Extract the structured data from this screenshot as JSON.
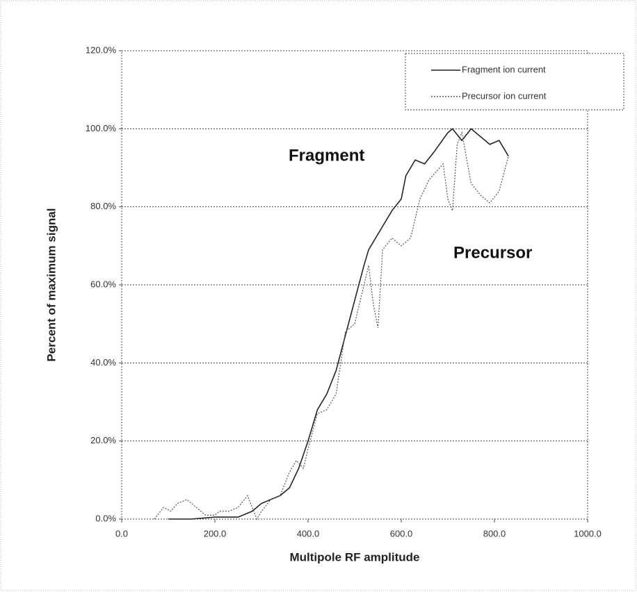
{
  "chart_data": {
    "type": "line",
    "x_label": "Multipole RF amplitude",
    "y_label": "Percent of maximum signal",
    "annotations": [
      "Fragment",
      "Precursor"
    ],
    "xlim": [
      0,
      1000
    ],
    "ylim": [
      0,
      120
    ],
    "xticks": [
      {
        "value": 0,
        "label": "0.0"
      },
      {
        "value": 200,
        "label": "200.0"
      },
      {
        "value": 400,
        "label": "400.0"
      },
      {
        "value": 600,
        "label": "600.0"
      },
      {
        "value": 800,
        "label": "800.0"
      },
      {
        "value": 1000,
        "label": "1000.0"
      }
    ],
    "yticks": [
      {
        "value": 0,
        "label": "0.0%"
      },
      {
        "value": 20,
        "label": "20.0%"
      },
      {
        "value": 40,
        "label": "40.0%"
      },
      {
        "value": 60,
        "label": "60.0%"
      },
      {
        "value": 80,
        "label": "80.0%"
      },
      {
        "value": 100,
        "label": "100.0%"
      },
      {
        "value": 120,
        "label": "120.0%"
      }
    ],
    "grid": true,
    "legend": "top-right",
    "series": [
      {
        "name": "Fragment ion current",
        "color": "#222222",
        "line_style": "solid",
        "x": [
          100,
          150,
          200,
          250,
          280,
          300,
          320,
          340,
          360,
          380,
          400,
          420,
          440,
          460,
          480,
          500,
          520,
          530,
          560,
          580,
          600,
          610,
          630,
          650,
          670,
          700,
          710,
          730,
          750,
          770,
          790,
          810,
          830
        ],
        "values": [
          0,
          0,
          0.5,
          0.5,
          2,
          4,
          5,
          6,
          8,
          13,
          20,
          28,
          32,
          38,
          47,
          56,
          65,
          69,
          75,
          79,
          82,
          88,
          92,
          91,
          94,
          99,
          100,
          97,
          100,
          98,
          96,
          97,
          93
        ]
      },
      {
        "name": "Precursor ion current",
        "color": "#555555",
        "line_style": "dotted",
        "x": [
          70,
          90,
          105,
          120,
          140,
          160,
          180,
          200,
          210,
          230,
          250,
          270,
          280,
          290,
          300,
          320,
          340,
          360,
          375,
          390,
          400,
          420,
          440,
          460,
          480,
          500,
          520,
          530,
          540,
          550,
          560,
          580,
          600,
          620,
          640,
          660,
          690,
          700,
          710,
          720,
          730,
          750,
          770,
          790,
          810,
          830
        ],
        "values": [
          0,
          3,
          2,
          4,
          5,
          3,
          1,
          1,
          2,
          2,
          3,
          6,
          3,
          0,
          2,
          5,
          6,
          12,
          15,
          13,
          18,
          27,
          28,
          32,
          48,
          50,
          60,
          65,
          55,
          49,
          69,
          72,
          70,
          72,
          82,
          87,
          91,
          82,
          79,
          96,
          99,
          86,
          83,
          81,
          84,
          93
        ]
      }
    ]
  }
}
